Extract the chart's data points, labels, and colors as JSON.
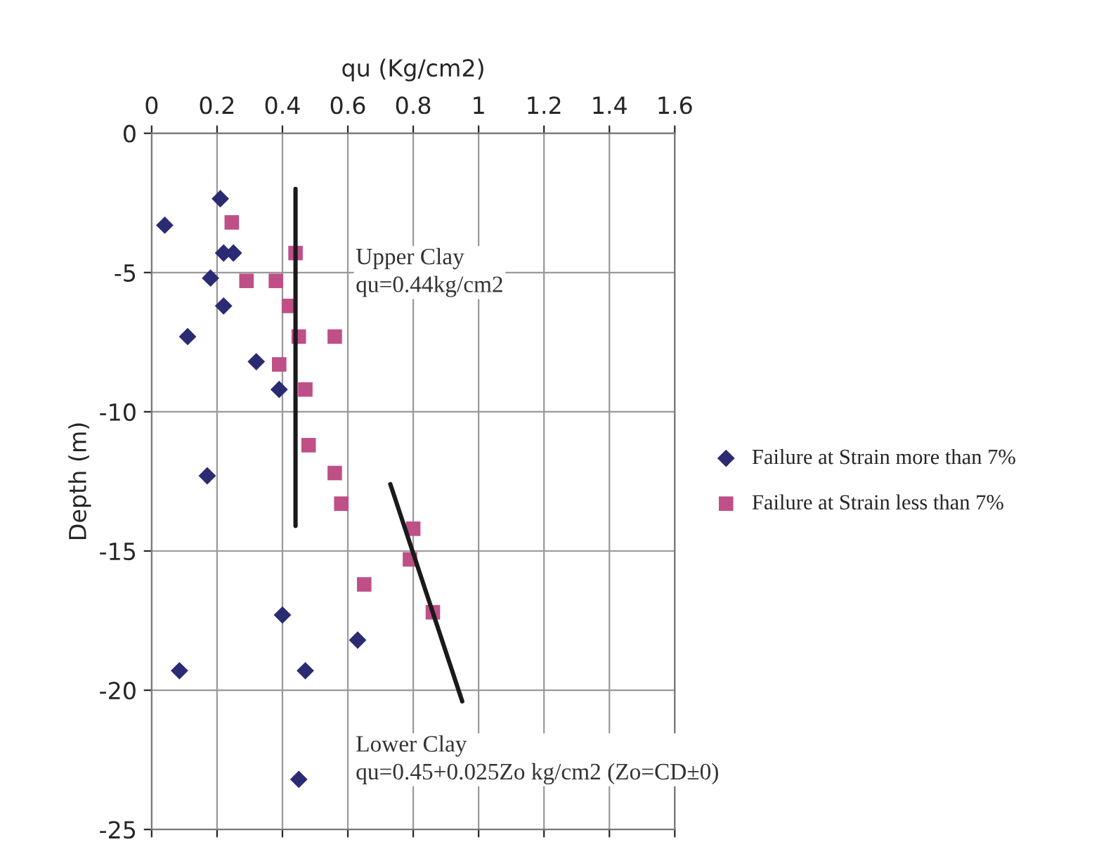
{
  "chart_data": {
    "type": "scatter",
    "xlabel": "qu (Kg/cm2)",
    "ylabel": "Depth (m)",
    "xlim": [
      0,
      1.6
    ],
    "xticks": [
      0,
      0.2,
      0.4,
      0.6,
      0.8,
      1,
      1.2,
      1.4,
      1.6
    ],
    "ylim": [
      -25,
      0
    ],
    "yticks": [
      -25,
      -20,
      -15,
      -10,
      -5,
      0
    ],
    "grid": true,
    "legend": "right",
    "series": [
      {
        "name": "Failure at Strain more than 7%",
        "marker": "diamond",
        "color": "#2b2b73",
        "x": [
          0.21,
          0.04,
          0.22,
          0.25,
          0.18,
          0.22,
          0.11,
          0.32,
          0.39,
          0.17,
          0.4,
          0.63,
          0.085,
          0.47,
          0.45
        ],
        "values": [
          -2.35,
          -3.3,
          -4.3,
          -4.3,
          -5.2,
          -6.2,
          -7.3,
          -8.2,
          -9.2,
          -12.3,
          -17.3,
          -18.2,
          -19.3,
          -19.3,
          -23.2
        ]
      },
      {
        "name": "Failure at Strain less than 7%",
        "marker": "square",
        "color": "#bf4f87",
        "x": [
          0.245,
          0.44,
          0.29,
          0.38,
          0.42,
          0.45,
          0.56,
          0.39,
          0.47,
          0.48,
          0.56,
          0.58,
          0.8,
          0.79,
          0.65,
          0.86
        ],
        "values": [
          -3.2,
          -4.3,
          -5.3,
          -5.3,
          -6.2,
          -7.3,
          -7.3,
          -8.3,
          -9.2,
          -11.2,
          -12.2,
          -13.3,
          -14.2,
          -15.3,
          -16.2,
          -17.2
        ]
      },
      {
        "type": "line",
        "color": "#1a1a1a",
        "x": [
          0.44,
          0.44
        ],
        "values": [
          -2.0,
          -14.1
        ]
      },
      {
        "type": "line",
        "color": "#1a1a1a",
        "x": [
          0.73,
          0.95
        ],
        "values": [
          -12.6,
          -20.4
        ]
      }
    ],
    "annotations": [
      "Upper Clay\nqu=0.44kg/cm2",
      "Lower Clay\nqu=0.45+0.025Zo kg/cm2 (Zo=CD±0)"
    ]
  }
}
